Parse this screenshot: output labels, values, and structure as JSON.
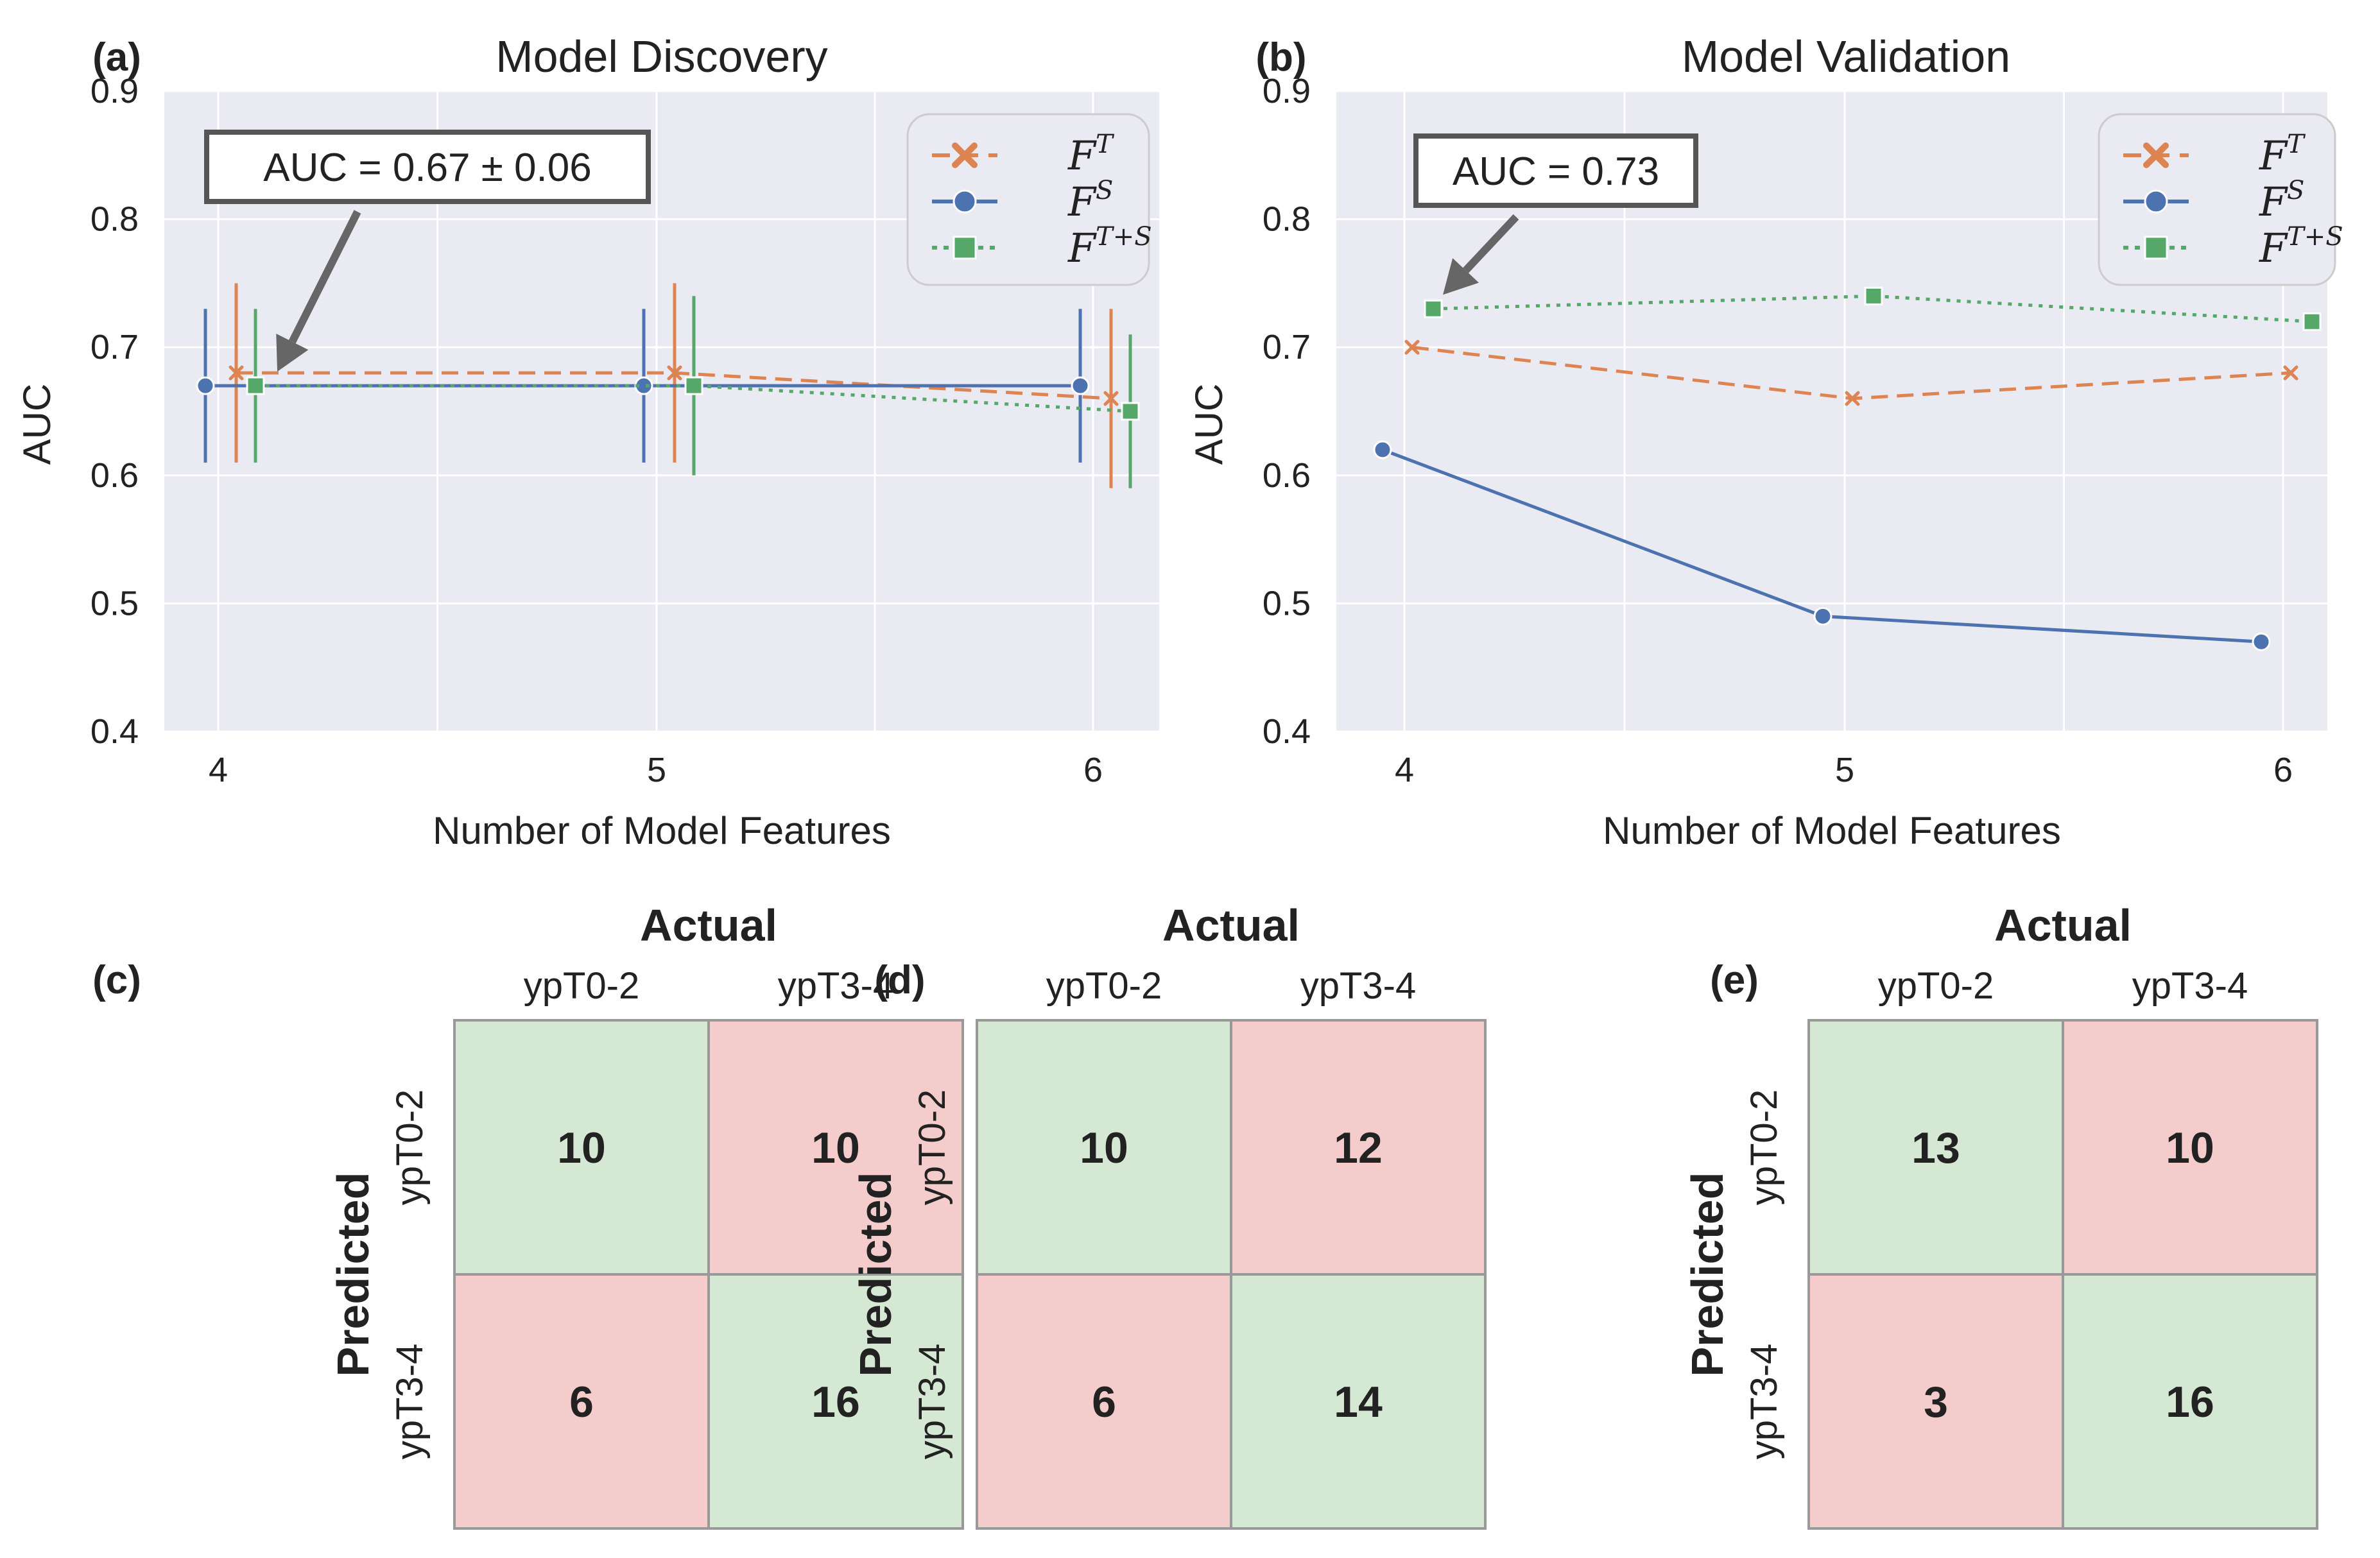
{
  "chart_data": [
    {
      "panel": "(a)",
      "type": "line",
      "title": "Model Discovery",
      "xlabel": "Number of Model Features",
      "ylabel": "AUC",
      "x": [
        4,
        5,
        6
      ],
      "ylim": [
        0.4,
        0.9
      ],
      "yticks": [
        "0.4",
        "0.5",
        "0.6",
        "0.7",
        "0.8",
        "0.9"
      ],
      "xticks": [
        "4",
        "5",
        "6"
      ],
      "grid": true,
      "legend_position": "top-right",
      "annotation": "AUC = 0.67 ± 0.06",
      "annotation_target": {
        "x": 4,
        "y": 0.67
      },
      "series": [
        {
          "name": "F",
          "sup": "T",
          "style": "dashed",
          "marker": "x",
          "color": "#dd8452",
          "values": [
            0.68,
            0.68,
            0.66
          ],
          "err": [
            0.07,
            0.07,
            0.07
          ]
        },
        {
          "name": "F",
          "sup": "S",
          "style": "solid",
          "marker": "circle",
          "color": "#4c72b0",
          "values": [
            0.67,
            0.67,
            0.67
          ],
          "err": [
            0.06,
            0.06,
            0.06
          ]
        },
        {
          "name": "F",
          "sup": "T+S",
          "style": "dotted",
          "marker": "square",
          "color": "#55a868",
          "values": [
            0.67,
            0.67,
            0.65
          ],
          "err": [
            0.06,
            0.07,
            0.06
          ]
        }
      ]
    },
    {
      "panel": "(b)",
      "type": "line",
      "title": "Model Validation",
      "xlabel": "Number of Model Features",
      "ylabel": "AUC",
      "x": [
        4,
        5,
        6
      ],
      "ylim": [
        0.4,
        0.9
      ],
      "yticks": [
        "0.4",
        "0.5",
        "0.6",
        "0.7",
        "0.8",
        "0.9"
      ],
      "xticks": [
        "4",
        "5",
        "6"
      ],
      "grid": true,
      "legend_position": "top-right",
      "annotation": "AUC = 0.73",
      "annotation_target": {
        "x": 4,
        "y": 0.73
      },
      "series": [
        {
          "name": "F",
          "sup": "T",
          "style": "dashed",
          "marker": "x",
          "color": "#dd8452",
          "values": [
            0.7,
            0.66,
            0.68
          ]
        },
        {
          "name": "F",
          "sup": "S",
          "style": "solid",
          "marker": "circle",
          "color": "#4c72b0",
          "values": [
            0.62,
            0.49,
            0.47
          ]
        },
        {
          "name": "F",
          "sup": "T+S",
          "style": "dotted",
          "marker": "square",
          "color": "#55a868",
          "values": [
            0.73,
            0.74,
            0.72
          ]
        }
      ]
    },
    {
      "panel": "(c)",
      "type": "table",
      "title": "Actual",
      "row_title": "Predicted",
      "col_labels": [
        "ypT0-2",
        "ypT3-4"
      ],
      "row_labels": [
        "ypT0-2",
        "ypT3-4"
      ],
      "cells": [
        [
          "10",
          "10"
        ],
        [
          "6",
          "16"
        ]
      ]
    },
    {
      "panel": "(d)",
      "type": "table",
      "title": "Actual",
      "row_title": "Predicted",
      "col_labels": [
        "ypT0-2",
        "ypT3-4"
      ],
      "row_labels": [
        "ypT0-2",
        "ypT3-4"
      ],
      "cells": [
        [
          "10",
          "12"
        ],
        [
          "6",
          "14"
        ]
      ]
    },
    {
      "panel": "(e)",
      "type": "table",
      "title": "Actual",
      "row_title": "Predicted",
      "col_labels": [
        "ypT0-2",
        "ypT3-4"
      ],
      "row_labels": [
        "ypT0-2",
        "ypT3-4"
      ],
      "cells": [
        [
          "13",
          "10"
        ],
        [
          "3",
          "16"
        ]
      ]
    }
  ],
  "colors": {
    "plot_bg": "#eaeaf2",
    "grid": "#ffffff",
    "correct_cell": "#d5e8d4",
    "wrong_cell": "#f4cccc",
    "cell_border": "#999999",
    "annotation_arrow": "#666666"
  }
}
